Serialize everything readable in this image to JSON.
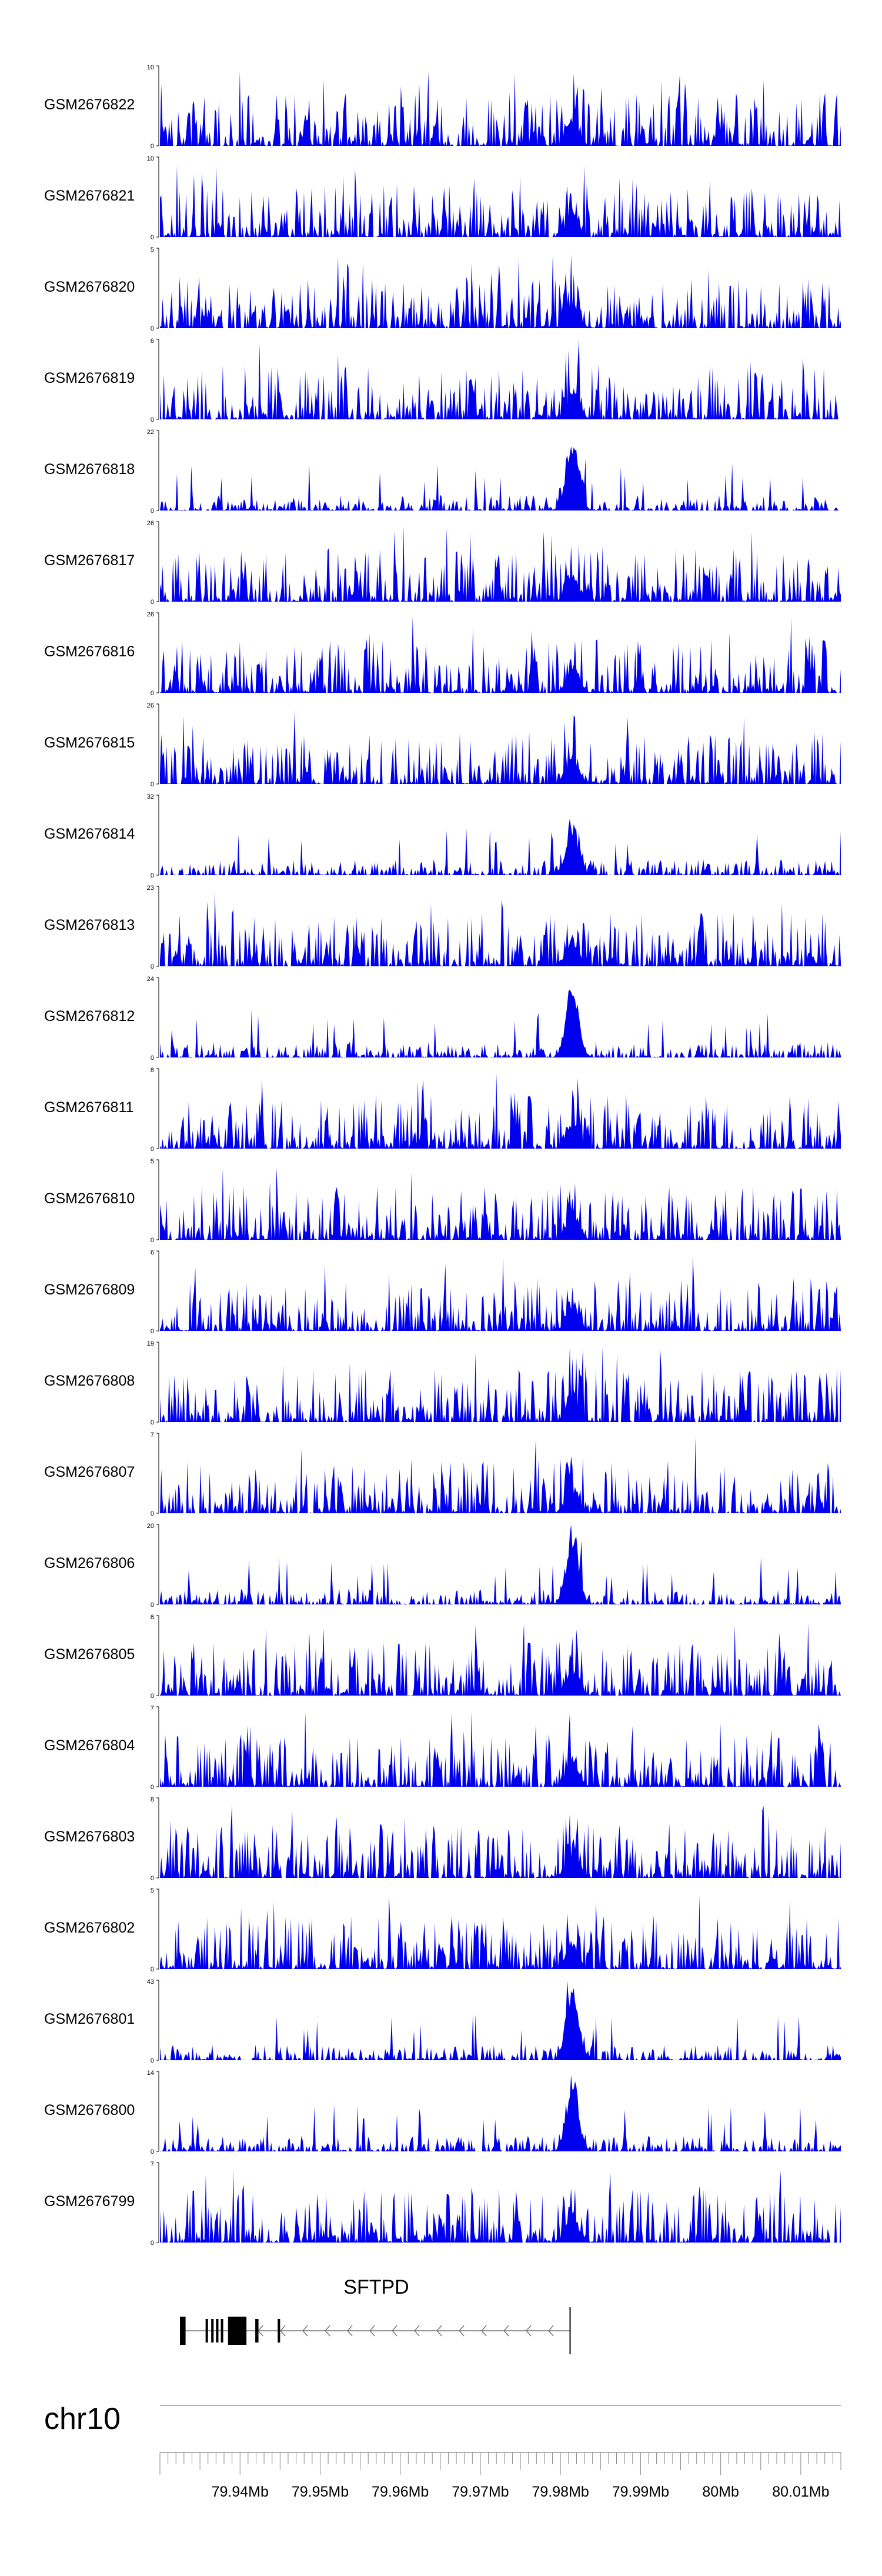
{
  "chart_data": {
    "type": "area",
    "color": "#0000ee",
    "chromosome": "chr10",
    "x_range_mb": [
      79.93,
      80.015
    ],
    "x_ticks": [
      {
        "value": 79.94,
        "label": "79.94Mb"
      },
      {
        "value": 79.95,
        "label": "79.95Mb"
      },
      {
        "value": 79.96,
        "label": "79.96Mb"
      },
      {
        "value": 79.97,
        "label": "79.97Mb"
      },
      {
        "value": 79.98,
        "label": "79.98Mb"
      },
      {
        "value": 79.99,
        "label": "79.99Mb"
      },
      {
        "value": 80.0,
        "label": "80Mb"
      },
      {
        "value": 80.01,
        "label": "80.01Mb"
      }
    ],
    "tracks": [
      {
        "name": "GSM2676822",
        "ymax": 10,
        "ymin_label": "0",
        "ymax_label": "10"
      },
      {
        "name": "GSM2676821",
        "ymax": 10,
        "ymin_label": "0",
        "ymax_label": "10"
      },
      {
        "name": "GSM2676820",
        "ymax": 5,
        "ymin_label": "0",
        "ymax_label": "5"
      },
      {
        "name": "GSM2676819",
        "ymax": 6,
        "ymin_label": "0",
        "ymax_label": "6"
      },
      {
        "name": "GSM2676818",
        "ymax": 22,
        "ymin_label": "0",
        "ymax_label": "22"
      },
      {
        "name": "GSM2676817",
        "ymax": 26,
        "ymin_label": "0",
        "ymax_label": "26"
      },
      {
        "name": "GSM2676816",
        "ymax": 26,
        "ymin_label": "0",
        "ymax_label": "26"
      },
      {
        "name": "GSM2676815",
        "ymax": 26,
        "ymin_label": "0",
        "ymax_label": "26"
      },
      {
        "name": "GSM2676814",
        "ymax": 32,
        "ymin_label": "0",
        "ymax_label": "32"
      },
      {
        "name": "GSM2676813",
        "ymax": 23,
        "ymin_label": "0",
        "ymax_label": "23"
      },
      {
        "name": "GSM2676812",
        "ymax": 24,
        "ymin_label": "0",
        "ymax_label": "24"
      },
      {
        "name": "GSM2676811",
        "ymax": 8,
        "ymin_label": "0",
        "ymax_label": "8"
      },
      {
        "name": "GSM2676810",
        "ymax": 5,
        "ymin_label": "0",
        "ymax_label": "5"
      },
      {
        "name": "GSM2676809",
        "ymax": 6,
        "ymin_label": "0",
        "ymax_label": "6"
      },
      {
        "name": "GSM2676808",
        "ymax": 19,
        "ymin_label": "0",
        "ymax_label": "19"
      },
      {
        "name": "GSM2676807",
        "ymax": 7,
        "ymin_label": "0",
        "ymax_label": "7"
      },
      {
        "name": "GSM2676806",
        "ymax": 20,
        "ymin_label": "0",
        "ymax_label": "20"
      },
      {
        "name": "GSM2676805",
        "ymax": 6,
        "ymin_label": "0",
        "ymax_label": "6"
      },
      {
        "name": "GSM2676804",
        "ymax": 7,
        "ymin_label": "0",
        "ymax_label": "7"
      },
      {
        "name": "GSM2676803",
        "ymax": 8,
        "ymin_label": "0",
        "ymax_label": "8"
      },
      {
        "name": "GSM2676802",
        "ymax": 5,
        "ymin_label": "0",
        "ymax_label": "5"
      },
      {
        "name": "GSM2676801",
        "ymax": 43,
        "ymin_label": "0",
        "ymax_label": "43"
      },
      {
        "name": "GSM2676800",
        "ymax": 14,
        "ymin_label": "0",
        "ymax_label": "14"
      },
      {
        "name": "GSM2676799",
        "ymax": 7,
        "ymin_label": "0",
        "ymax_label": "7"
      }
    ],
    "gene": {
      "name": "SFTPD",
      "strand": "-",
      "start_mb": 79.9325,
      "end_mb": 79.9812,
      "exons_mb": [
        [
          79.9325,
          79.9332
        ],
        [
          79.9357,
          79.936
        ],
        [
          79.9364,
          79.9367
        ],
        [
          79.937,
          79.9373
        ],
        [
          79.9376,
          79.9379
        ],
        [
          79.9385,
          79.9408
        ],
        [
          79.9419,
          79.9423
        ],
        [
          79.9447,
          79.945
        ]
      ]
    }
  }
}
